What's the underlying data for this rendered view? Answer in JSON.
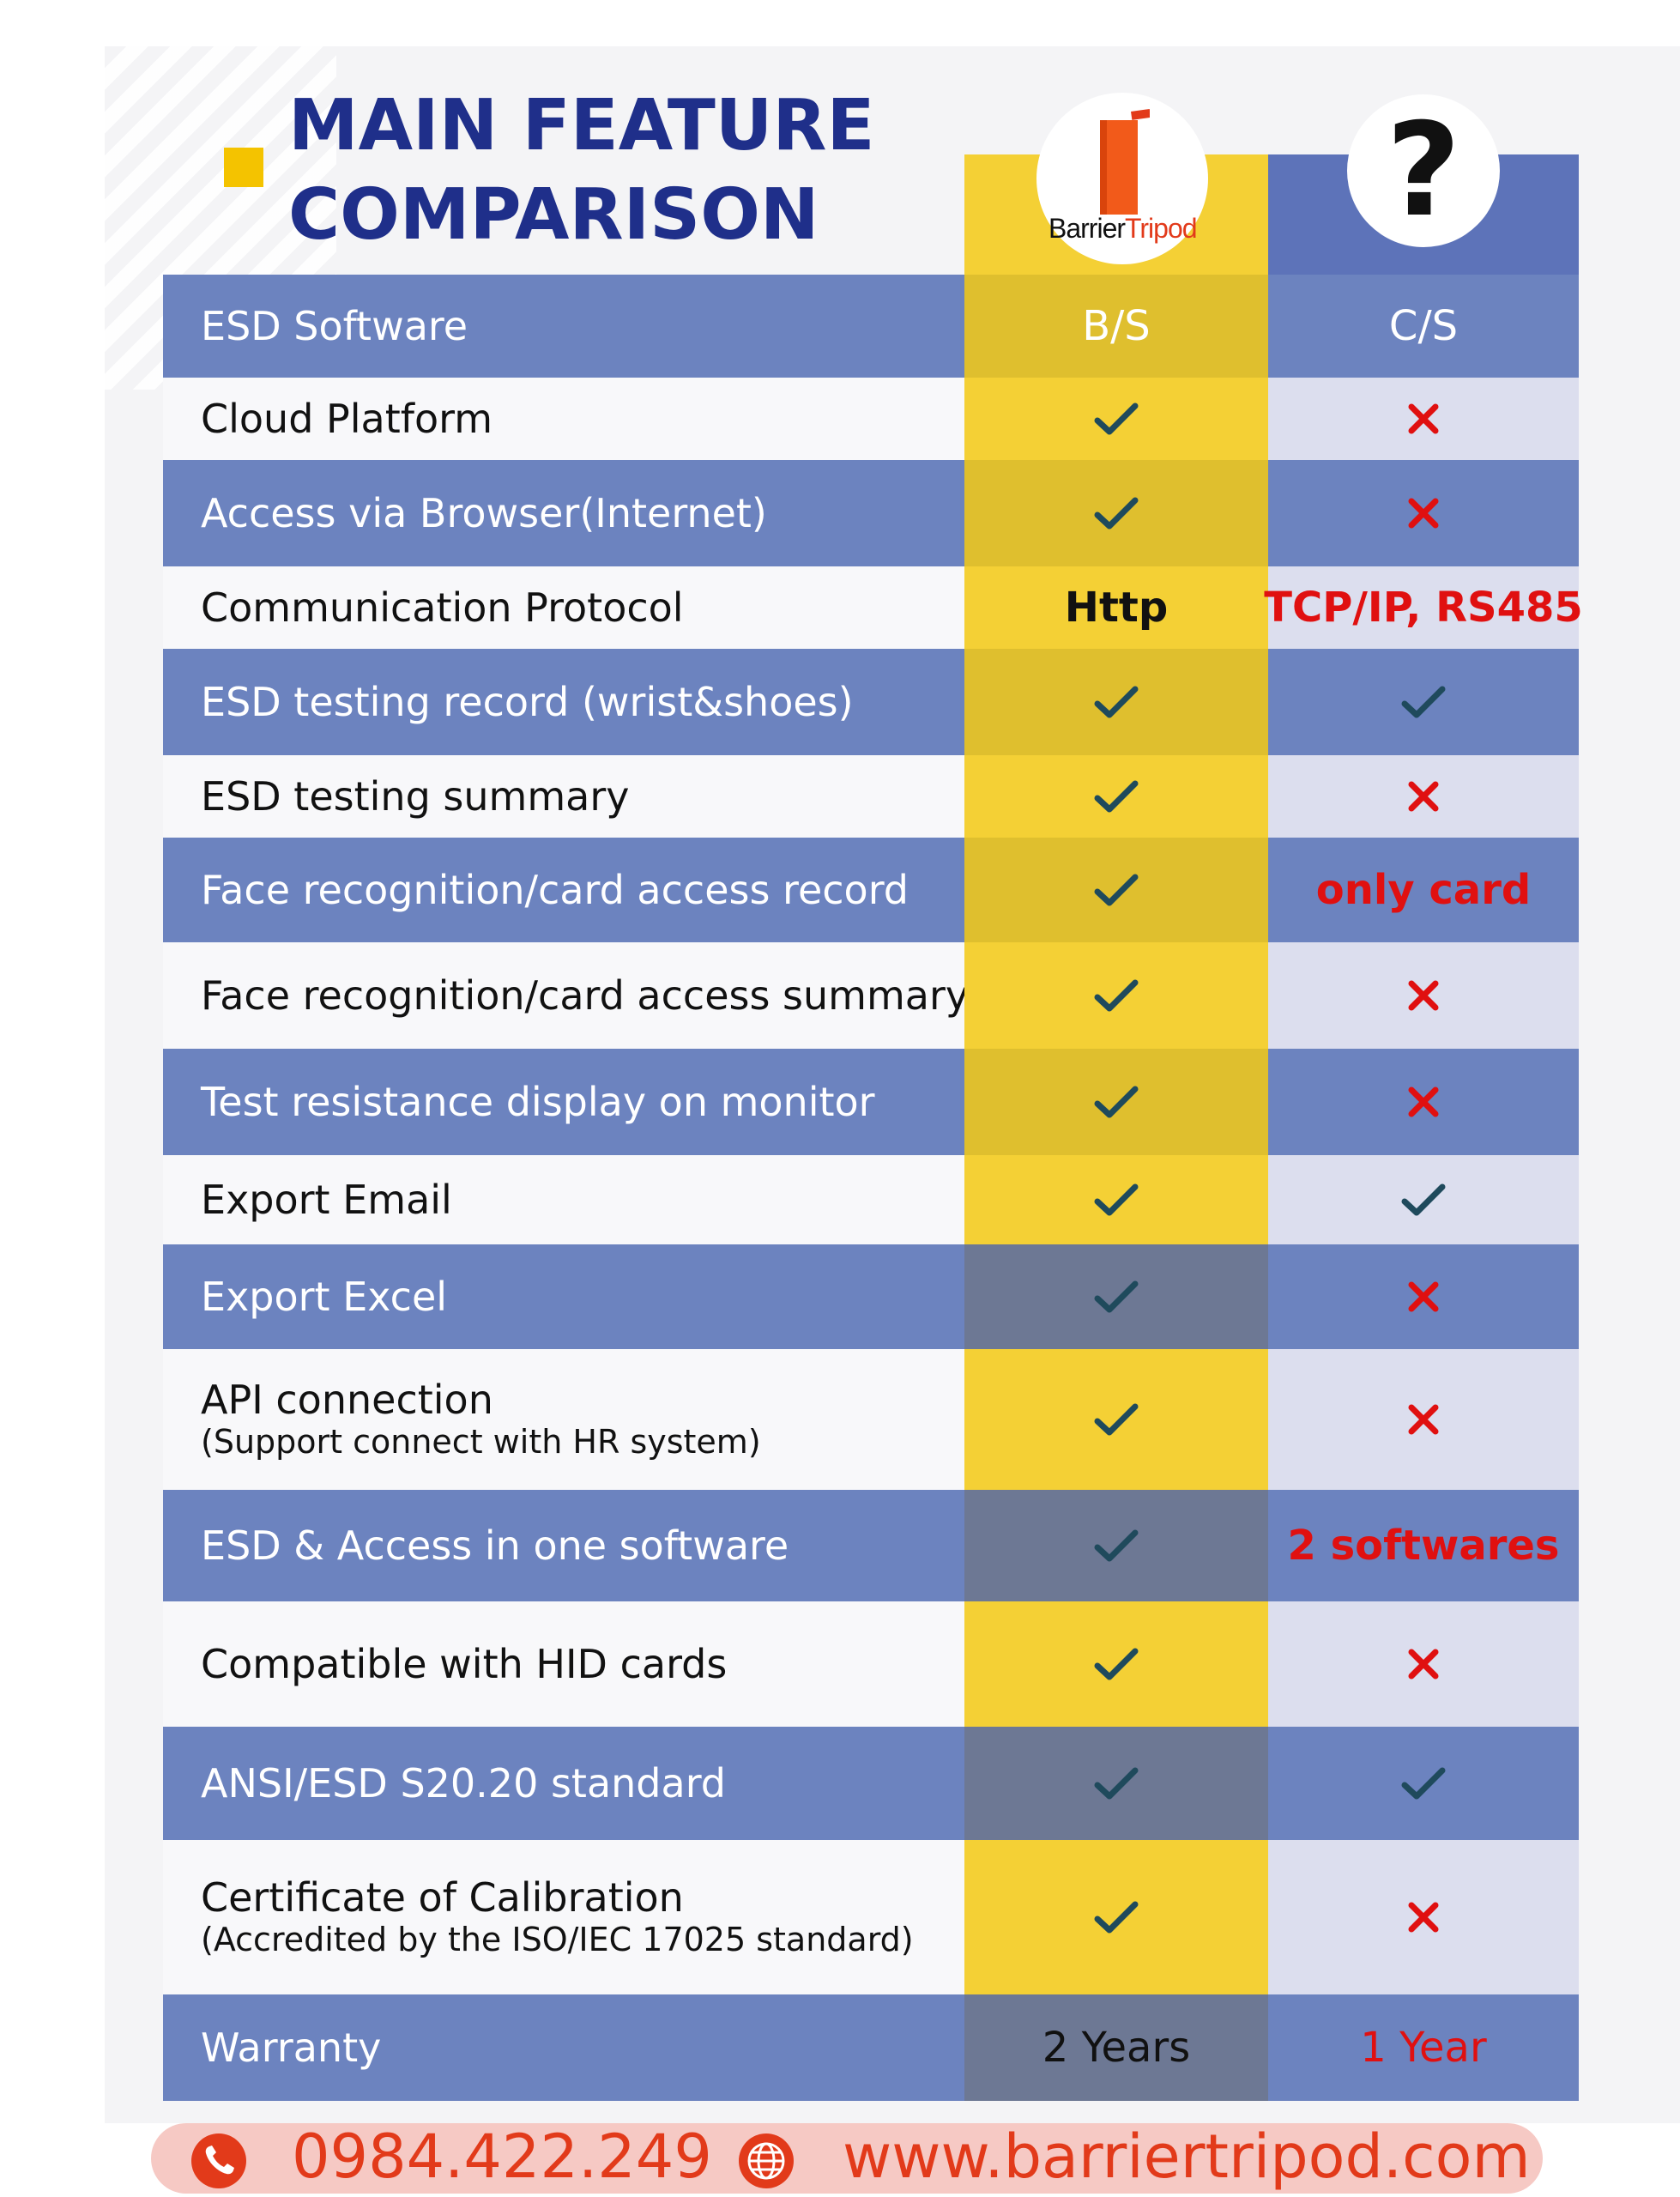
{
  "title": {
    "line1": "MAIN FEATURE",
    "line2": "COMPARISON"
  },
  "logo": {
    "brand_black": "Barrier",
    "brand_red": "Tripod"
  },
  "unknown_column": {
    "symbol": "?"
  },
  "colors": {
    "title": "#1f2f8a",
    "accent_yellow": "#f4d035",
    "accent_blue": "#5d73b9",
    "row_dark": "#6c83bf",
    "check": "#1f4a5c",
    "cross": "#e01010",
    "footer": "#e23a1a"
  },
  "rows": [
    {
      "feature": "ESD Software",
      "bs": {
        "type": "text",
        "value": "B/S"
      },
      "cs": {
        "type": "text",
        "value": "C/S"
      }
    },
    {
      "feature": "Cloud Platform",
      "bs": {
        "type": "check"
      },
      "cs": {
        "type": "cross"
      }
    },
    {
      "feature": "Access via Browser(Internet)",
      "bs": {
        "type": "check"
      },
      "cs": {
        "type": "cross"
      }
    },
    {
      "feature": "Communication Protocol",
      "bs": {
        "type": "text",
        "value": "Http"
      },
      "cs": {
        "type": "text",
        "value": "TCP/IP, RS485"
      }
    },
    {
      "feature": "ESD testing record (wrist&shoes)",
      "bs": {
        "type": "check"
      },
      "cs": {
        "type": "check"
      }
    },
    {
      "feature": "ESD testing summary",
      "bs": {
        "type": "check"
      },
      "cs": {
        "type": "cross"
      }
    },
    {
      "feature": "Face recognition/card access record",
      "bs": {
        "type": "check"
      },
      "cs": {
        "type": "text",
        "value": "only card"
      }
    },
    {
      "feature": "Face recognition/card access summary",
      "bs": {
        "type": "check"
      },
      "cs": {
        "type": "cross"
      }
    },
    {
      "feature": "Test resistance display on monitor",
      "bs": {
        "type": "check"
      },
      "cs": {
        "type": "cross"
      }
    },
    {
      "feature": "Export Email",
      "bs": {
        "type": "check"
      },
      "cs": {
        "type": "check"
      }
    },
    {
      "feature": "Export Excel",
      "bs": {
        "type": "check"
      },
      "cs": {
        "type": "cross"
      }
    },
    {
      "feature": "API connection",
      "note": "(Support connect with HR system)",
      "bs": {
        "type": "check"
      },
      "cs": {
        "type": "cross"
      }
    },
    {
      "feature": "ESD & Access in one software",
      "bs": {
        "type": "check"
      },
      "cs": {
        "type": "text",
        "value": "2 softwares"
      }
    },
    {
      "feature": "Compatible with HID cards",
      "bs": {
        "type": "check"
      },
      "cs": {
        "type": "cross"
      }
    },
    {
      "feature": "ANSI/ESD S20.20 standard",
      "bs": {
        "type": "check"
      },
      "cs": {
        "type": "check"
      }
    },
    {
      "feature": "Certificate of Calibration",
      "note": "(Accredited by the ISO/IEC 17025 standard)",
      "bs": {
        "type": "check"
      },
      "cs": {
        "type": "cross"
      }
    },
    {
      "feature": "Warranty",
      "bs": {
        "type": "text",
        "value": "2 Years"
      },
      "cs": {
        "type": "text",
        "value": "1 Year"
      }
    }
  ],
  "footer": {
    "phone": "0984.422.249",
    "website": "www.barriertripod.com",
    "phone_icon": "phone-icon",
    "globe_icon": "globe-icon"
  }
}
